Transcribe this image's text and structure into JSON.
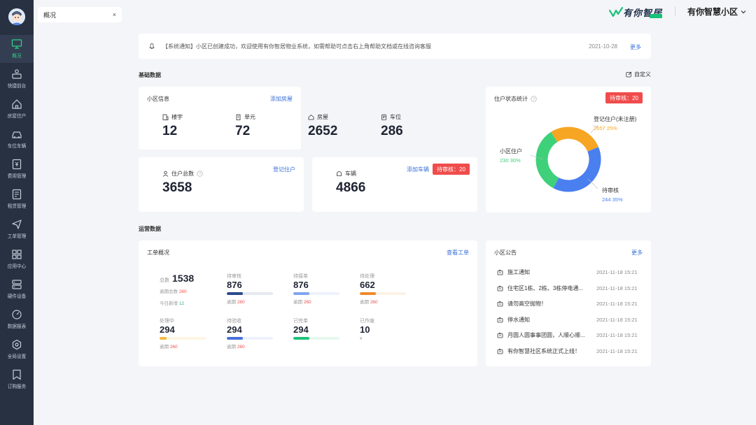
{
  "sidebar": {
    "items": [
      {
        "label": "概况",
        "icon": "monitor-icon"
      },
      {
        "label": "快捷前台",
        "icon": "reception-icon"
      },
      {
        "label": "房屋住户",
        "icon": "home-icon"
      },
      {
        "label": "车位车辆",
        "icon": "car-icon"
      },
      {
        "label": "费用管理",
        "icon": "fee-icon"
      },
      {
        "label": "租赁管理",
        "icon": "lease-icon"
      },
      {
        "label": "工单管理",
        "icon": "send-icon"
      },
      {
        "label": "应用中心",
        "icon": "apps-icon"
      },
      {
        "label": "硬件设备",
        "icon": "hardware-icon"
      },
      {
        "label": "数据报表",
        "icon": "report-icon"
      },
      {
        "label": "全局设置",
        "icon": "settings-icon"
      },
      {
        "label": "订购服务",
        "icon": "bookmark-icon"
      }
    ]
  },
  "topbar": {
    "tab_label": "概况",
    "tab_close": "×",
    "logo_text": "有你智居",
    "community_name": "有你智慧小区"
  },
  "notice": {
    "text": "【系统通知】小区已创建成功，欢迎使用有你智居物业系统，如需帮助可点击右上角帮助文档或在线咨询客服",
    "date": "2021-10-28",
    "more": "更多"
  },
  "basic": {
    "title": "基础数据",
    "customize": "自定义"
  },
  "community_info": {
    "title": "小区信息",
    "link": "添加房屋",
    "stats": [
      {
        "label": "楼宇",
        "value": "12"
      },
      {
        "label": "单元",
        "value": "72"
      },
      {
        "label": "房屋",
        "value": "2652"
      },
      {
        "label": "车位",
        "value": "286"
      }
    ]
  },
  "residents": {
    "label": "住户总数",
    "value": "3658",
    "link": "登记住户"
  },
  "vehicles": {
    "label": "车辆",
    "value": "4866",
    "link": "添加车辆",
    "badge": "待审核：20"
  },
  "resident_status": {
    "title": "住户状态统计",
    "badge": "待审核：20",
    "segments": [
      {
        "label": "登记住户(未注册)",
        "value": "2657 25%",
        "percent": 25,
        "color": "#f6a623"
      },
      {
        "label": "待审核",
        "value": "244 35%",
        "percent": 35,
        "color": "#4a7ff0"
      },
      {
        "label": "小区住户",
        "value": "230 30%",
        "percent": 30,
        "color": "#3fd07a"
      }
    ]
  },
  "ops": {
    "title": "运营数据"
  },
  "work_orders": {
    "title": "工单概况",
    "link": "查看工单",
    "total_label": "总数",
    "total_value": "1538",
    "overdue_label": "逾期总数",
    "overdue_value": "260",
    "today_label": "今日新增",
    "today_value": "12",
    "items": [
      {
        "label": "待审核",
        "value": "876",
        "sub_label": "逾期",
        "sub_value": "260",
        "progress": 0.35,
        "color": "#2b4a8c",
        "track": "#e6e9ef"
      },
      {
        "label": "待接单",
        "value": "876",
        "sub_label": "逾期",
        "sub_value": "260",
        "progress": 0.35,
        "color": "#7fa6f0",
        "track": "#eef2fb"
      },
      {
        "label": "待处理",
        "value": "662",
        "sub_label": "逾期",
        "sub_value": "260",
        "progress": 0.35,
        "color": "#f08a2c",
        "track": "#fdf1e6"
      },
      {
        "label": "处理中",
        "value": "294",
        "sub_label": "逾期",
        "sub_value": "260",
        "progress": 0.15,
        "color": "#f6b93b",
        "track": "#fdf6e4"
      },
      {
        "label": "待验收",
        "value": "294",
        "sub_label": "逾期",
        "sub_value": "260",
        "progress": 0.35,
        "color": "#4a6fd8",
        "track": "#eef1fb"
      },
      {
        "label": "已完单",
        "value": "294",
        "sub_label": "",
        "sub_value": "",
        "progress": 0.35,
        "color": "#1ec27a",
        "track": "#e6f8ef"
      },
      {
        "label": "已作废",
        "value": "10",
        "sub_label": "",
        "sub_value": "",
        "progress": 0.05,
        "color": "#c8ccd4",
        "track": "#ffffff"
      }
    ]
  },
  "announcements": {
    "title": "小区公告",
    "more": "更多",
    "items": [
      {
        "title": "施工通知",
        "time": "2021-11-18 15:21"
      },
      {
        "title": "住宅区1栋、2栋、3栋停电通...",
        "time": "2021-11-18 15:21"
      },
      {
        "title": "请勿高空抛物！",
        "time": "2021-11-18 15:21"
      },
      {
        "title": "停水通知",
        "time": "2021-11-18 15:21"
      },
      {
        "title": "月圆人圆事事团圆，人顺心顺...",
        "time": "2021-11-18 15:21"
      },
      {
        "title": "有你智慧社区系统正式上线！",
        "time": "2021-11-18 15:21"
      }
    ]
  }
}
